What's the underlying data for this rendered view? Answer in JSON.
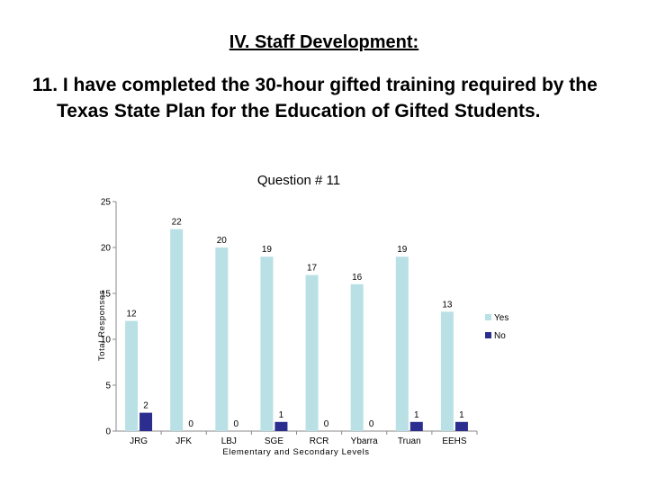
{
  "slide": {
    "section_title": "IV. Staff Development:",
    "question_text": "11.  I have completed the 30-hour gifted training required by the Texas State Plan for the Education of Gifted Students."
  },
  "chart_data": {
    "type": "bar",
    "title": "Question # 11",
    "xlabel": "Elementary and Secondary Levels",
    "ylabel": "Total Responses",
    "ylim": [
      0,
      25
    ],
    "yticks": [
      0,
      5,
      10,
      15,
      20,
      25
    ],
    "grid": false,
    "legend_position": "right",
    "categories": [
      "JRG",
      "JFK",
      "LBJ",
      "SGE",
      "RCR",
      "Ybarra",
      "Truan",
      "EEHS"
    ],
    "series": [
      {
        "name": "Yes",
        "color": "#b9e0e4",
        "values": [
          12,
          22,
          20,
          19,
          17,
          16,
          19,
          13
        ]
      },
      {
        "name": "No",
        "color": "#2b2e8f",
        "values": [
          2,
          0,
          0,
          1,
          0,
          0,
          1,
          1
        ]
      }
    ]
  }
}
